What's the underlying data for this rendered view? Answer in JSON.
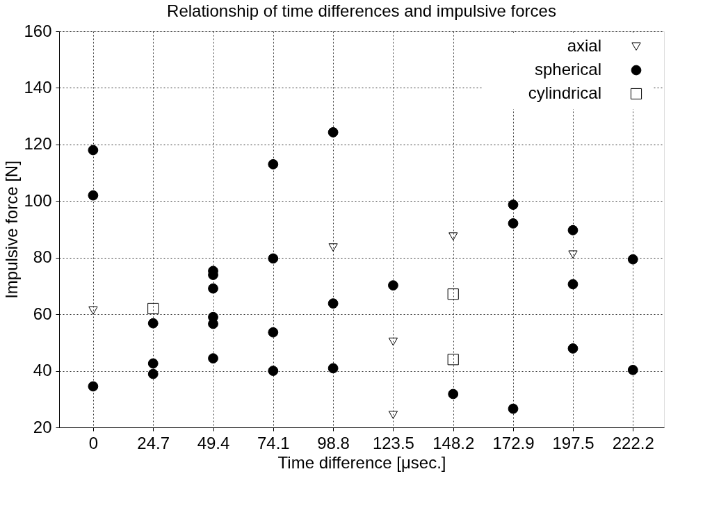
{
  "chart_data": {
    "type": "scatter",
    "title": "Relationship of time differences and impulsive forces",
    "xlabel": "Time difference [μsec.]",
    "ylabel": "Impulsive force [N]",
    "xlim": [
      -14,
      235
    ],
    "xticks": [
      0,
      24.7,
      49.4,
      74.1,
      98.8,
      123.5,
      148.2,
      172.9,
      197.5,
      222.2
    ],
    "ylim": [
      20,
      160
    ],
    "yticks": [
      20,
      40,
      60,
      80,
      100,
      120,
      140,
      160
    ],
    "grid": true,
    "legend": "top right",
    "series": [
      {
        "name": "axial",
        "color": "#000000",
        "marker": "triangle-down",
        "x": [
          0,
          98.8,
          123.5,
          123.5,
          148.2,
          197.5
        ],
        "values": [
          61.3,
          83.6,
          50.3,
          24.4,
          87.5,
          81.1
        ]
      },
      {
        "name": "spherical",
        "color": "#000000",
        "marker": "circle",
        "x": [
          0,
          0,
          0,
          24.7,
          24.7,
          24.7,
          49.4,
          49.4,
          49.4,
          49.4,
          49.4,
          49.4,
          74.1,
          74.1,
          74.1,
          74.1,
          98.8,
          98.8,
          98.8,
          123.5,
          148.2,
          172.9,
          172.9,
          172.9,
          197.5,
          197.5,
          197.5,
          222.2,
          222.2
        ],
        "values": [
          118.0,
          102.0,
          34.5,
          56.8,
          42.6,
          38.9,
          75.3,
          73.9,
          69.1,
          59.0,
          56.6,
          44.4,
          113.0,
          79.7,
          53.6,
          40.0,
          124.3,
          63.8,
          40.9,
          70.2,
          31.8,
          98.7,
          92.1,
          26.6,
          89.7,
          70.6,
          47.9,
          79.4,
          40.3
        ]
      },
      {
        "name": "cylindrical",
        "color": "#000000",
        "marker": "square",
        "x": [
          24.7,
          148.2,
          148.2
        ],
        "values": [
          62.0,
          67.1,
          44.0
        ]
      }
    ]
  }
}
